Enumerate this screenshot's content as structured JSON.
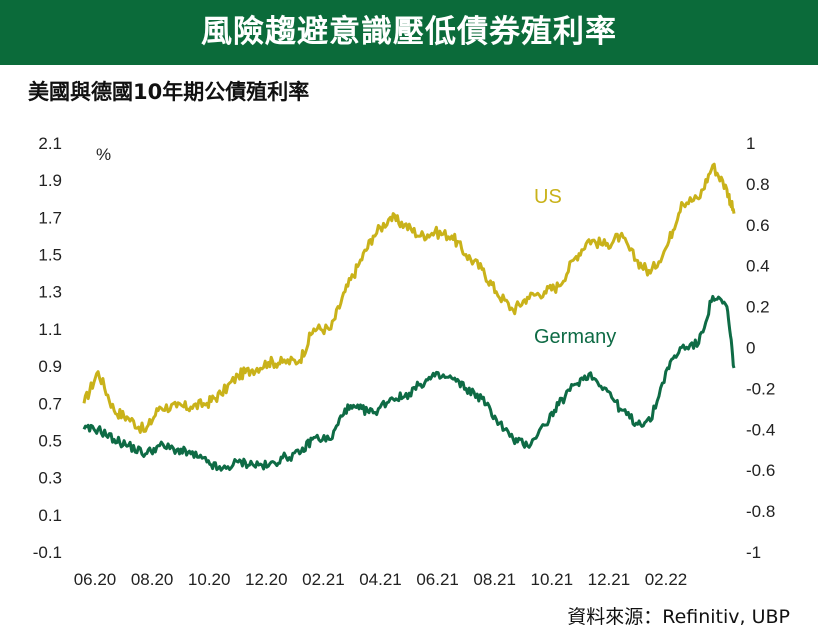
{
  "header": {
    "title": "風險趨避意識壓低債券殖利率"
  },
  "subtitle": "美國與德國10年期公債殖利率",
  "source": "資料來源：Refinitiv, UBP",
  "colors": {
    "banner": "#0b6b3a",
    "us": "#c9b21a",
    "germany": "#0e6b45"
  },
  "chart_data": {
    "type": "line",
    "title": "美國與德國10年期公債殖利率",
    "unit_label": "%",
    "x_ticks": [
      "06.20",
      "08.20",
      "10.20",
      "12.20",
      "02.21",
      "04.21",
      "06.21",
      "08.21",
      "10.21",
      "12.21",
      "02.22"
    ],
    "left_axis": {
      "ylim": [
        -0.1,
        2.1
      ],
      "ticks": [
        "2.1",
        "1.9",
        "1.7",
        "1.5",
        "1.3",
        "1.1",
        "0.9",
        "0.7",
        "0.5",
        "0.3",
        "0.1",
        "-0.1"
      ]
    },
    "right_axis": {
      "ylim": [
        -1,
        1
      ],
      "ticks": [
        "1",
        "0.8",
        "0.6",
        "0.4",
        "0.2",
        "0",
        "-0.2",
        "-0.4",
        "-0.6",
        "-0.8",
        "-1"
      ]
    },
    "x": [
      "2020-06-01",
      "2020-06-15",
      "2020-07-01",
      "2020-07-15",
      "2020-08-01",
      "2020-08-15",
      "2020-09-01",
      "2020-09-15",
      "2020-10-01",
      "2020-10-15",
      "2020-11-01",
      "2020-11-15",
      "2020-12-01",
      "2020-12-15",
      "2021-01-01",
      "2021-01-15",
      "2021-02-01",
      "2021-02-15",
      "2021-03-01",
      "2021-03-15",
      "2021-04-01",
      "2021-04-15",
      "2021-05-01",
      "2021-05-15",
      "2021-06-01",
      "2021-06-15",
      "2021-07-01",
      "2021-07-15",
      "2021-08-01",
      "2021-08-15",
      "2021-09-01",
      "2021-09-15",
      "2021-10-01",
      "2021-10-15",
      "2021-11-01",
      "2021-11-15",
      "2021-12-01",
      "2021-12-15",
      "2022-01-01",
      "2022-01-15",
      "2022-02-01",
      "2022-02-15",
      "2022-03-01",
      "2022-03-08"
    ],
    "series": [
      {
        "name": "US",
        "axis": "left",
        "values": [
          0.7,
          0.87,
          0.66,
          0.62,
          0.55,
          0.68,
          0.68,
          0.68,
          0.7,
          0.75,
          0.85,
          0.88,
          0.92,
          0.92,
          0.93,
          1.1,
          1.1,
          1.3,
          1.45,
          1.6,
          1.7,
          1.66,
          1.6,
          1.62,
          1.6,
          1.5,
          1.42,
          1.3,
          1.2,
          1.27,
          1.3,
          1.33,
          1.48,
          1.58,
          1.55,
          1.6,
          1.47,
          1.4,
          1.55,
          1.78,
          1.8,
          1.98,
          1.85,
          1.72
        ]
      },
      {
        "name": "Germany",
        "axis": "right",
        "values": [
          -0.4,
          -0.4,
          -0.45,
          -0.48,
          -0.52,
          -0.48,
          -0.5,
          -0.52,
          -0.56,
          -0.6,
          -0.56,
          -0.57,
          -0.58,
          -0.54,
          -0.52,
          -0.44,
          -0.45,
          -0.3,
          -0.3,
          -0.32,
          -0.25,
          -0.24,
          -0.18,
          -0.14,
          -0.15,
          -0.2,
          -0.25,
          -0.35,
          -0.45,
          -0.48,
          -0.38,
          -0.28,
          -0.18,
          -0.13,
          -0.2,
          -0.3,
          -0.37,
          -0.36,
          -0.1,
          0.0,
          0.02,
          0.25,
          0.2,
          -0.1
        ]
      }
    ],
    "series_labels": {
      "us": "US",
      "germany": "Germany"
    },
    "grid": false
  }
}
